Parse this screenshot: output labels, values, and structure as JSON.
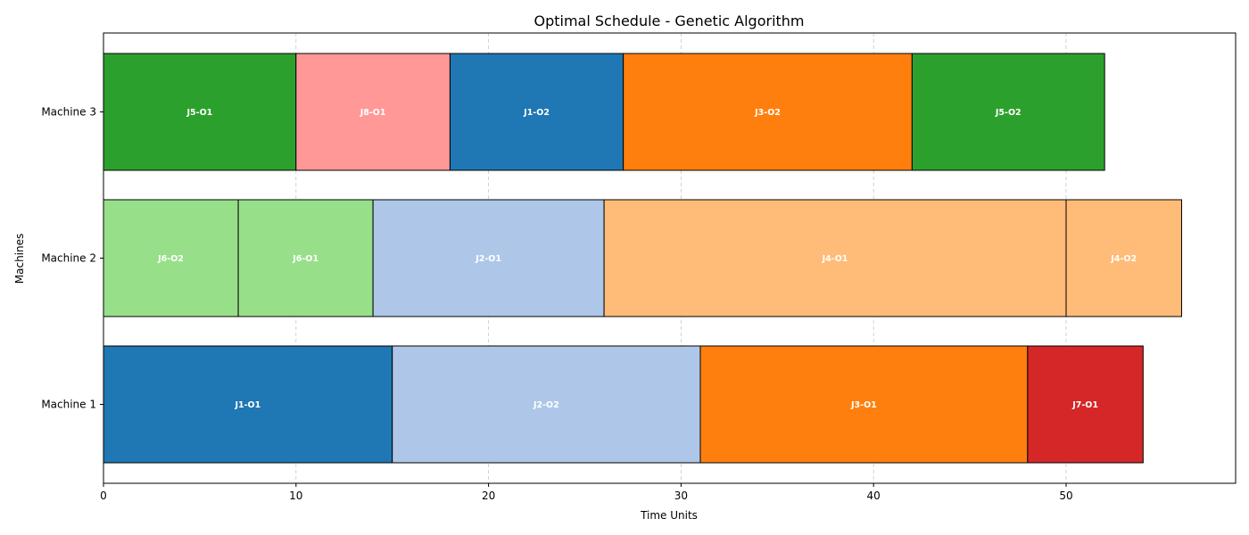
{
  "chart_data": {
    "type": "gantt",
    "title": "Optimal Schedule - Genetic Algorithm",
    "xlabel": "Time Units",
    "ylabel": "Machines",
    "xlim": [
      0,
      58.8
    ],
    "x_ticks": [
      0,
      10,
      20,
      30,
      40,
      50
    ],
    "grid": "x-dashed",
    "machines": [
      "Machine 1",
      "Machine 2",
      "Machine 3"
    ],
    "tasks": [
      {
        "machine": "Machine 1",
        "label": "J1-O1",
        "start": 0,
        "end": 15,
        "color": "#1f77b4"
      },
      {
        "machine": "Machine 1",
        "label": "J2-O2",
        "start": 15,
        "end": 31,
        "color": "#aec7e8"
      },
      {
        "machine": "Machine 1",
        "label": "J3-O1",
        "start": 31,
        "end": 48,
        "color": "#ff7f0e"
      },
      {
        "machine": "Machine 1",
        "label": "J7-O1",
        "start": 48,
        "end": 54,
        "color": "#d62728"
      },
      {
        "machine": "Machine 2",
        "label": "J6-O2",
        "start": 0,
        "end": 7,
        "color": "#98df8a"
      },
      {
        "machine": "Machine 2",
        "label": "J6-O1",
        "start": 7,
        "end": 14,
        "color": "#98df8a"
      },
      {
        "machine": "Machine 2",
        "label": "J2-O1",
        "start": 14,
        "end": 26,
        "color": "#aec7e8"
      },
      {
        "machine": "Machine 2",
        "label": "J4-O1",
        "start": 26,
        "end": 50,
        "color": "#ffbb78"
      },
      {
        "machine": "Machine 2",
        "label": "J4-O2",
        "start": 50,
        "end": 56,
        "color": "#ffbb78"
      },
      {
        "machine": "Machine 3",
        "label": "J5-O1",
        "start": 0,
        "end": 10,
        "color": "#2ca02c"
      },
      {
        "machine": "Machine 3",
        "label": "J8-O1",
        "start": 10,
        "end": 18,
        "color": "#ff9896"
      },
      {
        "machine": "Machine 3",
        "label": "J1-O2",
        "start": 18,
        "end": 27,
        "color": "#1f77b4"
      },
      {
        "machine": "Machine 3",
        "label": "J3-O2",
        "start": 27,
        "end": 42,
        "color": "#ff7f0e"
      },
      {
        "machine": "Machine 3",
        "label": "J5-O2",
        "start": 42,
        "end": 52,
        "color": "#2ca02c"
      }
    ]
  }
}
